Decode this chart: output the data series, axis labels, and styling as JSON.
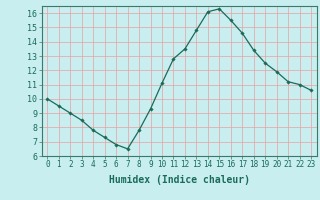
{
  "x": [
    0,
    1,
    2,
    3,
    4,
    5,
    6,
    7,
    8,
    9,
    10,
    11,
    12,
    13,
    14,
    15,
    16,
    17,
    18,
    19,
    20,
    21,
    22,
    23
  ],
  "y": [
    10,
    9.5,
    9.0,
    8.5,
    7.8,
    7.3,
    6.8,
    6.5,
    7.8,
    9.3,
    11.1,
    12.8,
    13.5,
    14.8,
    16.1,
    16.3,
    15.5,
    14.6,
    13.4,
    12.5,
    11.9,
    11.2,
    11.0,
    10.6
  ],
  "xlabel": "Humidex (Indice chaleur)",
  "ylim": [
    6,
    16.5
  ],
  "xlim": [
    -0.5,
    23.5
  ],
  "yticks": [
    6,
    7,
    8,
    9,
    10,
    11,
    12,
    13,
    14,
    15,
    16
  ],
  "xticks": [
    0,
    1,
    2,
    3,
    4,
    5,
    6,
    7,
    8,
    9,
    10,
    11,
    12,
    13,
    14,
    15,
    16,
    17,
    18,
    19,
    20,
    21,
    22,
    23
  ],
  "line_color": "#1a6b5a",
  "marker": "D",
  "marker_size": 1.8,
  "bg_color": "#c8eef0",
  "grid_color": "#e8a0a0",
  "xlabel_fontsize": 7,
  "tick_fontsize": 5.5,
  "ytick_fontsize": 6
}
